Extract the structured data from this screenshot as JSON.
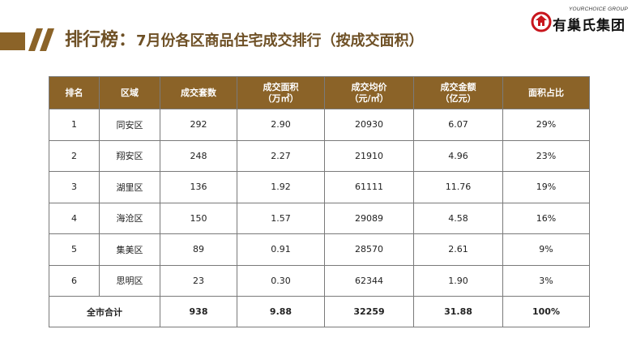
{
  "header": {
    "title_main": "排行榜：",
    "title_sub": "7月份各区商品住宅成交排行（按成交面积）",
    "accent_color": "#8b6328"
  },
  "logo": {
    "tagline": "YOURCHOICE GROUP",
    "name": "有巢氏集团",
    "icon": "house-logo-icon"
  },
  "table": {
    "columns": [
      "排名",
      "区域",
      "成交套数",
      "成交面积\n（万㎡）",
      "成交均价\n（元/㎡）",
      "成交金额\n（亿元）",
      "面积占比"
    ],
    "rows": [
      [
        "1",
        "同安区",
        "292",
        "2.90",
        "20930",
        "6.07",
        "29%"
      ],
      [
        "2",
        "翔安区",
        "248",
        "2.27",
        "21910",
        "4.96",
        "23%"
      ],
      [
        "3",
        "湖里区",
        "136",
        "1.92",
        "61111",
        "11.76",
        "19%"
      ],
      [
        "4",
        "海沧区",
        "150",
        "1.57",
        "29089",
        "4.58",
        "16%"
      ],
      [
        "5",
        "集美区",
        "89",
        "0.91",
        "28570",
        "2.61",
        "9%"
      ],
      [
        "6",
        "思明区",
        "23",
        "0.30",
        "62344",
        "1.90",
        "3%"
      ]
    ],
    "total": [
      "全市合计",
      "938",
      "9.88",
      "32259",
      "31.88",
      "100%"
    ]
  }
}
